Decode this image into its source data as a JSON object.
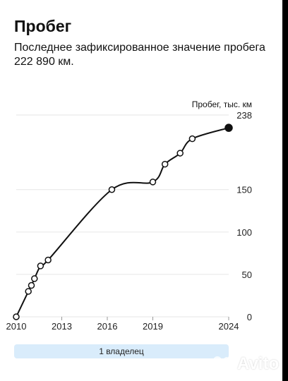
{
  "header": {
    "title": "Пробег",
    "subtitle": "Последнее зафиксированное значение пробега 222 890 км."
  },
  "chart_data": {
    "type": "line",
    "ylabel": "Пробег, тыс. км",
    "xlim": [
      2010,
      2024
    ],
    "ylim": [
      0,
      238
    ],
    "x_ticks": [
      "2010",
      "2013",
      "2016",
      "2019",
      "2024"
    ],
    "y_ticks": [
      "0",
      "50",
      "100",
      "150",
      "238"
    ],
    "points": [
      {
        "x": 2010.0,
        "y": 0
      },
      {
        "x": 2010.8,
        "y": 30
      },
      {
        "x": 2011.0,
        "y": 37
      },
      {
        "x": 2011.2,
        "y": 45
      },
      {
        "x": 2011.6,
        "y": 60
      },
      {
        "x": 2012.1,
        "y": 67
      },
      {
        "x": 2016.3,
        "y": 150
      },
      {
        "x": 2019.0,
        "y": 159
      },
      {
        "x": 2019.8,
        "y": 180
      },
      {
        "x": 2020.8,
        "y": 193
      },
      {
        "x": 2021.6,
        "y": 210
      },
      {
        "x": 2024.0,
        "y": 222.89
      }
    ],
    "last_point_filled": true
  },
  "owners": {
    "label": "1 владелец"
  },
  "watermark": {
    "text": "Avito",
    "icon": "avito-logo-icon"
  },
  "colors": {
    "line": "#111111",
    "grid": "#e6e6e6",
    "owners_bg": "#d9ecfb"
  }
}
